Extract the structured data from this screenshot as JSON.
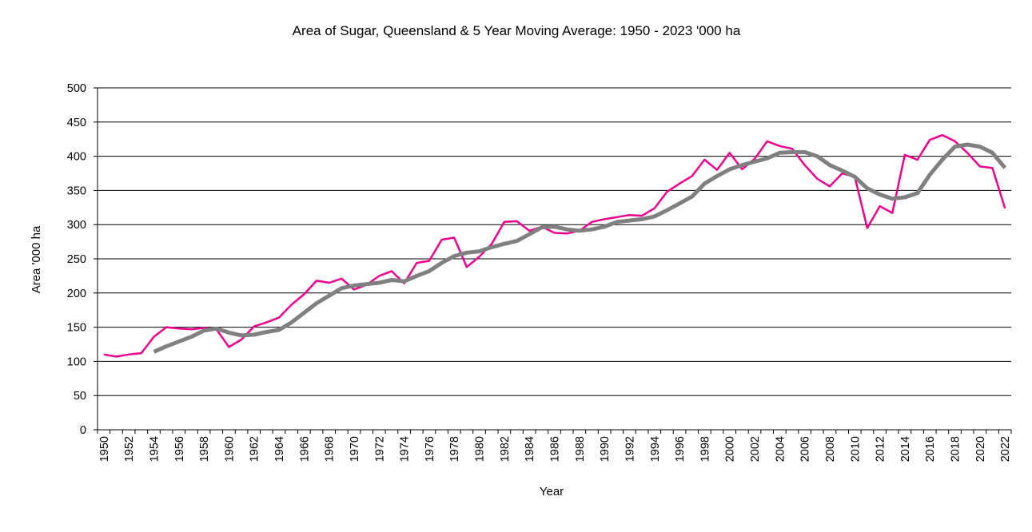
{
  "chart_data": {
    "type": "line",
    "title": "Area of Sugar, Queensland & 5 Year Moving Average: 1950 - 2023 '000 ha",
    "xlabel": "Year",
    "ylabel": "Area '000 ha",
    "ylim": [
      0,
      500
    ],
    "yticks": [
      0,
      50,
      100,
      150,
      200,
      250,
      300,
      350,
      400,
      450,
      500
    ],
    "grid": true,
    "legend": "none",
    "categories": [
      1950,
      1951,
      1952,
      1953,
      1954,
      1955,
      1956,
      1957,
      1958,
      1959,
      1960,
      1961,
      1962,
      1963,
      1964,
      1965,
      1966,
      1967,
      1968,
      1969,
      1970,
      1971,
      1972,
      1973,
      1974,
      1975,
      1976,
      1977,
      1978,
      1979,
      1980,
      1981,
      1982,
      1983,
      1984,
      1985,
      1986,
      1987,
      1988,
      1989,
      1990,
      1991,
      1992,
      1993,
      1994,
      1995,
      1996,
      1997,
      1998,
      1999,
      2000,
      2001,
      2002,
      2003,
      2004,
      2005,
      2006,
      2007,
      2008,
      2009,
      2010,
      2011,
      2012,
      2013,
      2014,
      2015,
      2016,
      2017,
      2018,
      2019,
      2020,
      2021,
      2022
    ],
    "xtick_labels": [
      "1950",
      "1952",
      "1954",
      "1956",
      "1958",
      "1960",
      "1962",
      "1964",
      "1966",
      "1968",
      "1970",
      "1972",
      "1974",
      "1976",
      "1978",
      "1980",
      "1982",
      "1984",
      "1986",
      "1988",
      "1990",
      "1992",
      "1994",
      "1996",
      "1998",
      "2000",
      "2002",
      "2004",
      "2006",
      "2008",
      "2010",
      "2012",
      "2014",
      "2016",
      "2018",
      "2020",
      "2022"
    ],
    "series": [
      {
        "name": "Area of Sugar, Queensland",
        "color": "#EC008C",
        "values": [
          110,
          107,
          110,
          112,
          136,
          150,
          148,
          147,
          149,
          147,
          121,
          132,
          151,
          157,
          164,
          183,
          198,
          218,
          215,
          221,
          205,
          212,
          225,
          232,
          214,
          244,
          247,
          278,
          281,
          238,
          253,
          272,
          304,
          305,
          291,
          297,
          288,
          287,
          291,
          304,
          308,
          311,
          314,
          313,
          324,
          348,
          360,
          371,
          395,
          380,
          405,
          381,
          396,
          422,
          415,
          411,
          387,
          367,
          356,
          375,
          370,
          295,
          327,
          317,
          402,
          395,
          424,
          431,
          422,
          405,
          385,
          383,
          324
        ]
      },
      {
        "name": "5 Year Moving Average",
        "color": "#808080",
        "values": [
          null,
          null,
          null,
          null,
          114,
          122,
          129,
          136,
          145,
          148,
          142,
          138,
          139,
          143,
          146,
          157,
          171,
          185,
          196,
          207,
          211,
          213,
          215,
          219,
          217,
          225,
          232,
          244,
          254,
          259,
          261,
          267,
          272,
          276,
          286,
          296,
          297,
          293,
          291,
          293,
          297,
          304,
          306,
          308,
          312,
          321,
          331,
          341,
          360,
          371,
          381,
          387,
          392,
          397,
          405,
          406,
          406,
          400,
          387,
          379,
          370,
          353,
          344,
          338,
          340,
          346,
          373,
          395,
          414,
          417,
          414,
          405,
          383
        ]
      }
    ]
  }
}
